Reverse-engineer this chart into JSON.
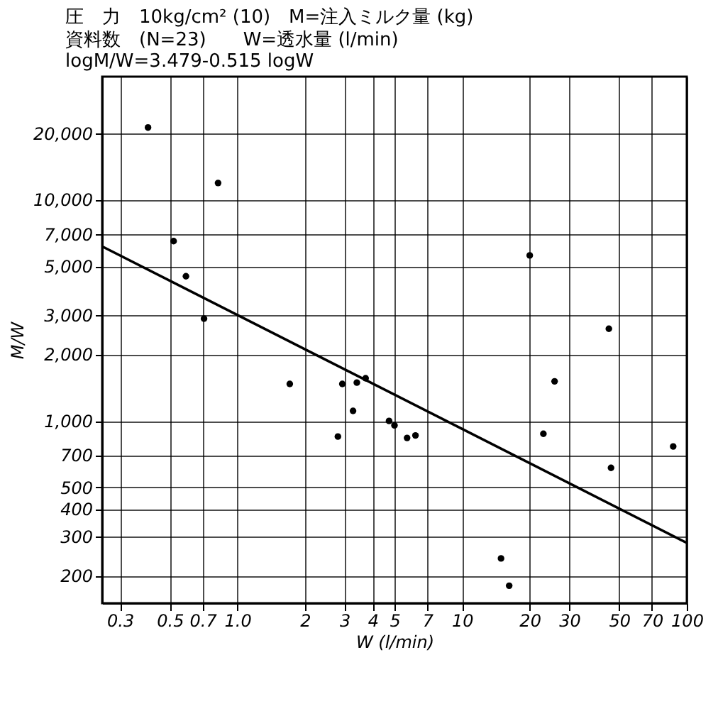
{
  "chart_data": {
    "type": "scatter",
    "title": "圧　力　10kg/cm² (10)　M=注入ミルク量 (kg)",
    "subtitle": "資料数　(N=23)　　W=透水量 (l/min)",
    "annotations": [
      "logM/W=3.479-0.515 logW"
    ],
    "xlabel": "W (l/min)",
    "ylabel": "M/W",
    "log": "xy",
    "grid": true,
    "legend": false,
    "xlim": [
      0.25,
      100
    ],
    "ylim": [
      150,
      36000
    ],
    "xticks": [
      0.3,
      0.5,
      0.7,
      {
        "value": 1,
        "label": "1.0"
      },
      2,
      3,
      4,
      5,
      7,
      10,
      20,
      30,
      50,
      70,
      100
    ],
    "yticks": [
      200,
      300,
      400,
      500,
      700,
      {
        "value": 1000,
        "label": "1,000"
      },
      {
        "value": 2000,
        "label": "2,000"
      },
      {
        "value": 3000,
        "label": "3,000"
      },
      {
        "value": 5000,
        "label": "5,000"
      },
      {
        "value": 7000,
        "label": "7,000"
      },
      {
        "value": 10000,
        "label": "10,000"
      },
      {
        "value": 20000,
        "label": "20,000"
      }
    ],
    "series": [
      {
        "marker": "circle",
        "color": "#000000",
        "x": [
          0.4,
          0.82,
          0.59,
          0.71,
          0.52,
          1.71,
          2.93,
          3.4,
          3.27,
          2.8,
          3.72,
          4.73,
          5.0,
          5.69,
          6.2,
          25.8,
          23,
          46,
          87,
          14.9,
          16.2,
          20,
          45
        ],
        "values": [
          21200,
          11900,
          4510,
          2900,
          6500,
          1470,
          1470,
          1490,
          1110,
          850,
          1560,
          1000,
          955,
          838,
          860,
          1510,
          875,
          614,
          767,
          239,
          180,
          5600,
          2610
        ]
      },
      {
        "type": "line",
        "color": "#000000",
        "line_style": "solid",
        "x": [
          0.25,
          100
        ],
        "values": [
          6150,
          281
        ]
      }
    ]
  }
}
